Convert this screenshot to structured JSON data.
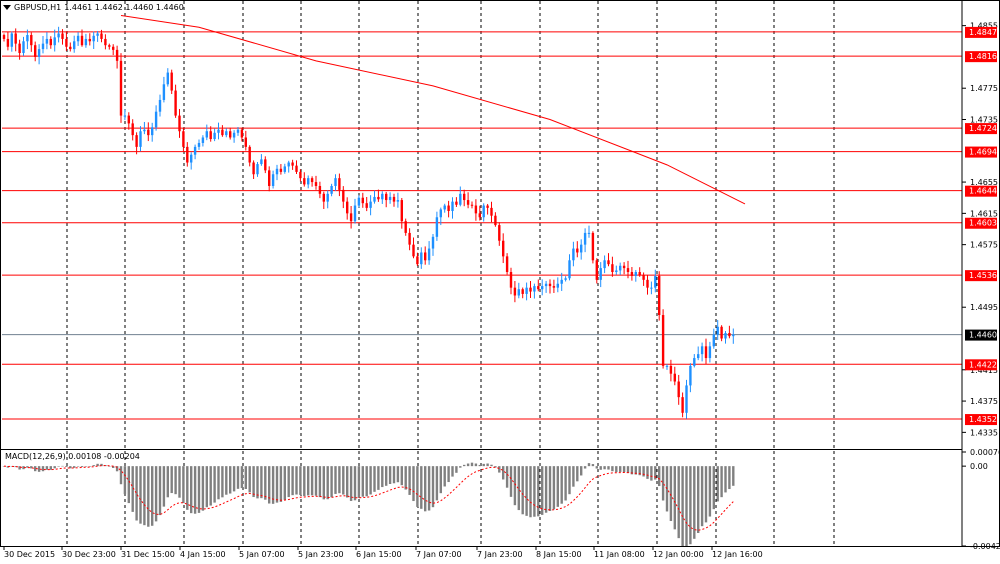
{
  "header": {
    "symbol_label": "GBPUSD,H1",
    "ohlc_label": "1.4461 1.4462 1.4460 1.4460"
  },
  "macd": {
    "label": "MACD(12,26,9) 0.00108 -0.00204",
    "axis_ticks": [
      "0.00076",
      "0.00",
      "-0.00429"
    ]
  },
  "colors": {
    "bull_candle": "#1E90FF",
    "bear_candle": "#FF0000",
    "level_line": "#FF0000",
    "ma_line": "#FF0000",
    "current_price_line": "#708090",
    "histogram": "#808080",
    "signal_line": "#FF0000",
    "grid_line": "#000000",
    "background": "#FFFFFF"
  },
  "chart_data": {
    "type": "candlestick",
    "symbol": "GBPUSD",
    "timeframe": "H1",
    "ylim": [
      1.4315,
      1.4875
    ],
    "y_ticks": [
      1.4855,
      1.4775,
      1.4735,
      1.4655,
      1.4615,
      1.4575,
      1.4495,
      1.4415,
      1.4375,
      1.4335
    ],
    "x_ticks": [
      "30 Dec 2015",
      "30 Dec 23:00",
      "31 Dec 15:00",
      "4 Jan 15:00",
      "5 Jan 07:00",
      "5 Jan 23:00",
      "6 Jan 15:00",
      "7 Jan 07:00",
      "7 Jan 23:00",
      "8 Jan 15:00",
      "11 Jan 08:00",
      "12 Jan 00:00",
      "12 Jan 16:00"
    ],
    "grid": "vertical dashed",
    "current_price": 1.446,
    "horizontal_levels": [
      1.4847,
      1.4816,
      1.4724,
      1.4694,
      1.4644,
      1.4603,
      1.4536,
      1.4422,
      1.4352
    ],
    "moving_average": [
      {
        "idx": 30,
        "price": 1.4868
      },
      {
        "idx": 50,
        "price": 1.4853
      },
      {
        "idx": 80,
        "price": 1.481
      },
      {
        "idx": 110,
        "price": 1.4778
      },
      {
        "idx": 140,
        "price": 1.4735
      },
      {
        "idx": 170,
        "price": 1.4677
      },
      {
        "idx": 190,
        "price": 1.4627
      }
    ],
    "closes": [
      1.4838,
      1.4828,
      1.4845,
      1.4832,
      1.482,
      1.4835,
      1.4843,
      1.483,
      1.4815,
      1.4825,
      1.4832,
      1.4838,
      1.483,
      1.484,
      1.4845,
      1.4838,
      1.4828,
      1.4825,
      1.4835,
      1.4842,
      1.483,
      1.4838,
      1.4835,
      1.4842,
      1.4845,
      1.4838,
      1.483,
      1.4828,
      1.4824,
      1.481,
      1.474,
      1.474,
      1.473,
      1.4715,
      1.47,
      1.472,
      1.4722,
      1.4715,
      1.4725,
      1.4745,
      1.476,
      1.478,
      1.4795,
      1.4772,
      1.474,
      1.472,
      1.47,
      1.468,
      1.469,
      1.47,
      1.4705,
      1.4712,
      1.472,
      1.471,
      1.4718,
      1.4722,
      1.4715,
      1.472,
      1.4712,
      1.4718,
      1.4722,
      1.4712,
      1.47,
      1.468,
      1.4665,
      1.4678,
      1.4684,
      1.467,
      1.465,
      1.4665,
      1.4672,
      1.4668,
      1.4675,
      1.468,
      1.4676,
      1.4668,
      1.466,
      1.4652,
      1.466,
      1.4655,
      1.465,
      1.464,
      1.463,
      1.464,
      1.465,
      1.466,
      1.4645,
      1.463,
      1.4615,
      1.4605,
      1.4625,
      1.4635,
      1.4628,
      1.4622,
      1.463,
      1.4636,
      1.4633,
      1.464,
      1.4632,
      1.4636,
      1.463,
      1.4632,
      1.4605,
      1.459,
      1.4575,
      1.456,
      1.455,
      1.4565,
      1.4555,
      1.457,
      1.4585,
      1.461,
      1.462,
      1.4625,
      1.4618,
      1.463,
      1.4626,
      1.464,
      1.4632,
      1.4626,
      1.4625,
      1.4615,
      1.461,
      1.4625,
      1.4622,
      1.4612,
      1.46,
      1.458,
      1.456,
      1.454,
      1.452,
      1.451,
      1.4518,
      1.4512,
      1.452,
      1.4515,
      1.4522,
      1.4518,
      1.4522,
      1.4525,
      1.4522,
      1.452,
      1.4525,
      1.453,
      1.4532,
      1.4555,
      1.457,
      1.4565,
      1.4575,
      1.459,
      1.459,
      1.4555,
      1.453,
      1.4545,
      1.4555,
      1.455,
      1.454,
      1.4542,
      1.4548,
      1.4545,
      1.454,
      1.4535,
      1.454,
      1.4536,
      1.453,
      1.452,
      1.452,
      1.4535,
      1.4485,
      1.442,
      1.442,
      1.441,
      1.44,
      1.438,
      1.436,
      1.4395,
      1.442,
      1.443,
      1.4435,
      1.4445,
      1.443,
      1.4445,
      1.446,
      1.447,
      1.4455,
      1.4462,
      1.4458,
      1.446
    ]
  }
}
